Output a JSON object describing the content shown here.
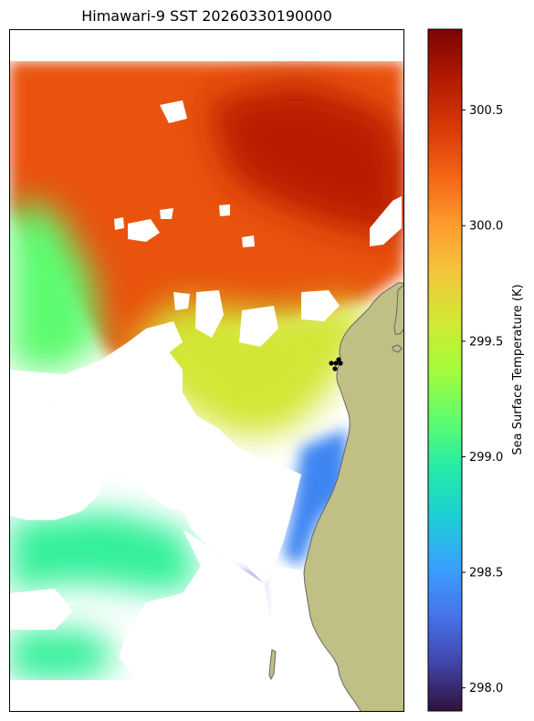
{
  "chart_data": {
    "type": "heatmap",
    "title": "Himawari-9 SST 20260330190000",
    "colorbar": {
      "label": "Sea Surface Temperature (K)",
      "range": [
        297.9,
        300.85
      ],
      "ticks": [
        298.0,
        298.5,
        299.0,
        299.5,
        300.0,
        300.5
      ],
      "tick_labels": [
        "298.0",
        "298.5",
        "299.0",
        "299.5",
        "300.0",
        "300.5"
      ],
      "colormap": "turbo",
      "colors": [
        "#30123b",
        "#4145ab",
        "#4675ed",
        "#39a2fc",
        "#1bcfd4",
        "#24eca6",
        "#61fc6c",
        "#a4fc3b",
        "#d1e834",
        "#f3c63a",
        "#fe9b2d",
        "#f36315",
        "#d93806",
        "#b11901",
        "#7a0402"
      ]
    },
    "land_color": "#bfbf86",
    "land_edge_color": "#666666",
    "no_data_color": "#ffffff",
    "regions": [
      {
        "name": "north-warm-region",
        "value": 300.3
      },
      {
        "name": "northeast-hot-core",
        "value": 300.6
      },
      {
        "name": "west-cool-region",
        "value": 299.15
      },
      {
        "name": "central-transition",
        "value": 299.6
      },
      {
        "name": "coastal-cold-tongue",
        "value": 298.4
      },
      {
        "name": "south-cold-patch",
        "value": 298.2
      },
      {
        "name": "southwest-patches",
        "value": 299.0
      }
    ],
    "markers": [
      {
        "name": "station-1"
      },
      {
        "name": "station-2"
      },
      {
        "name": "station-3"
      },
      {
        "name": "station-4"
      },
      {
        "name": "station-5"
      }
    ]
  }
}
